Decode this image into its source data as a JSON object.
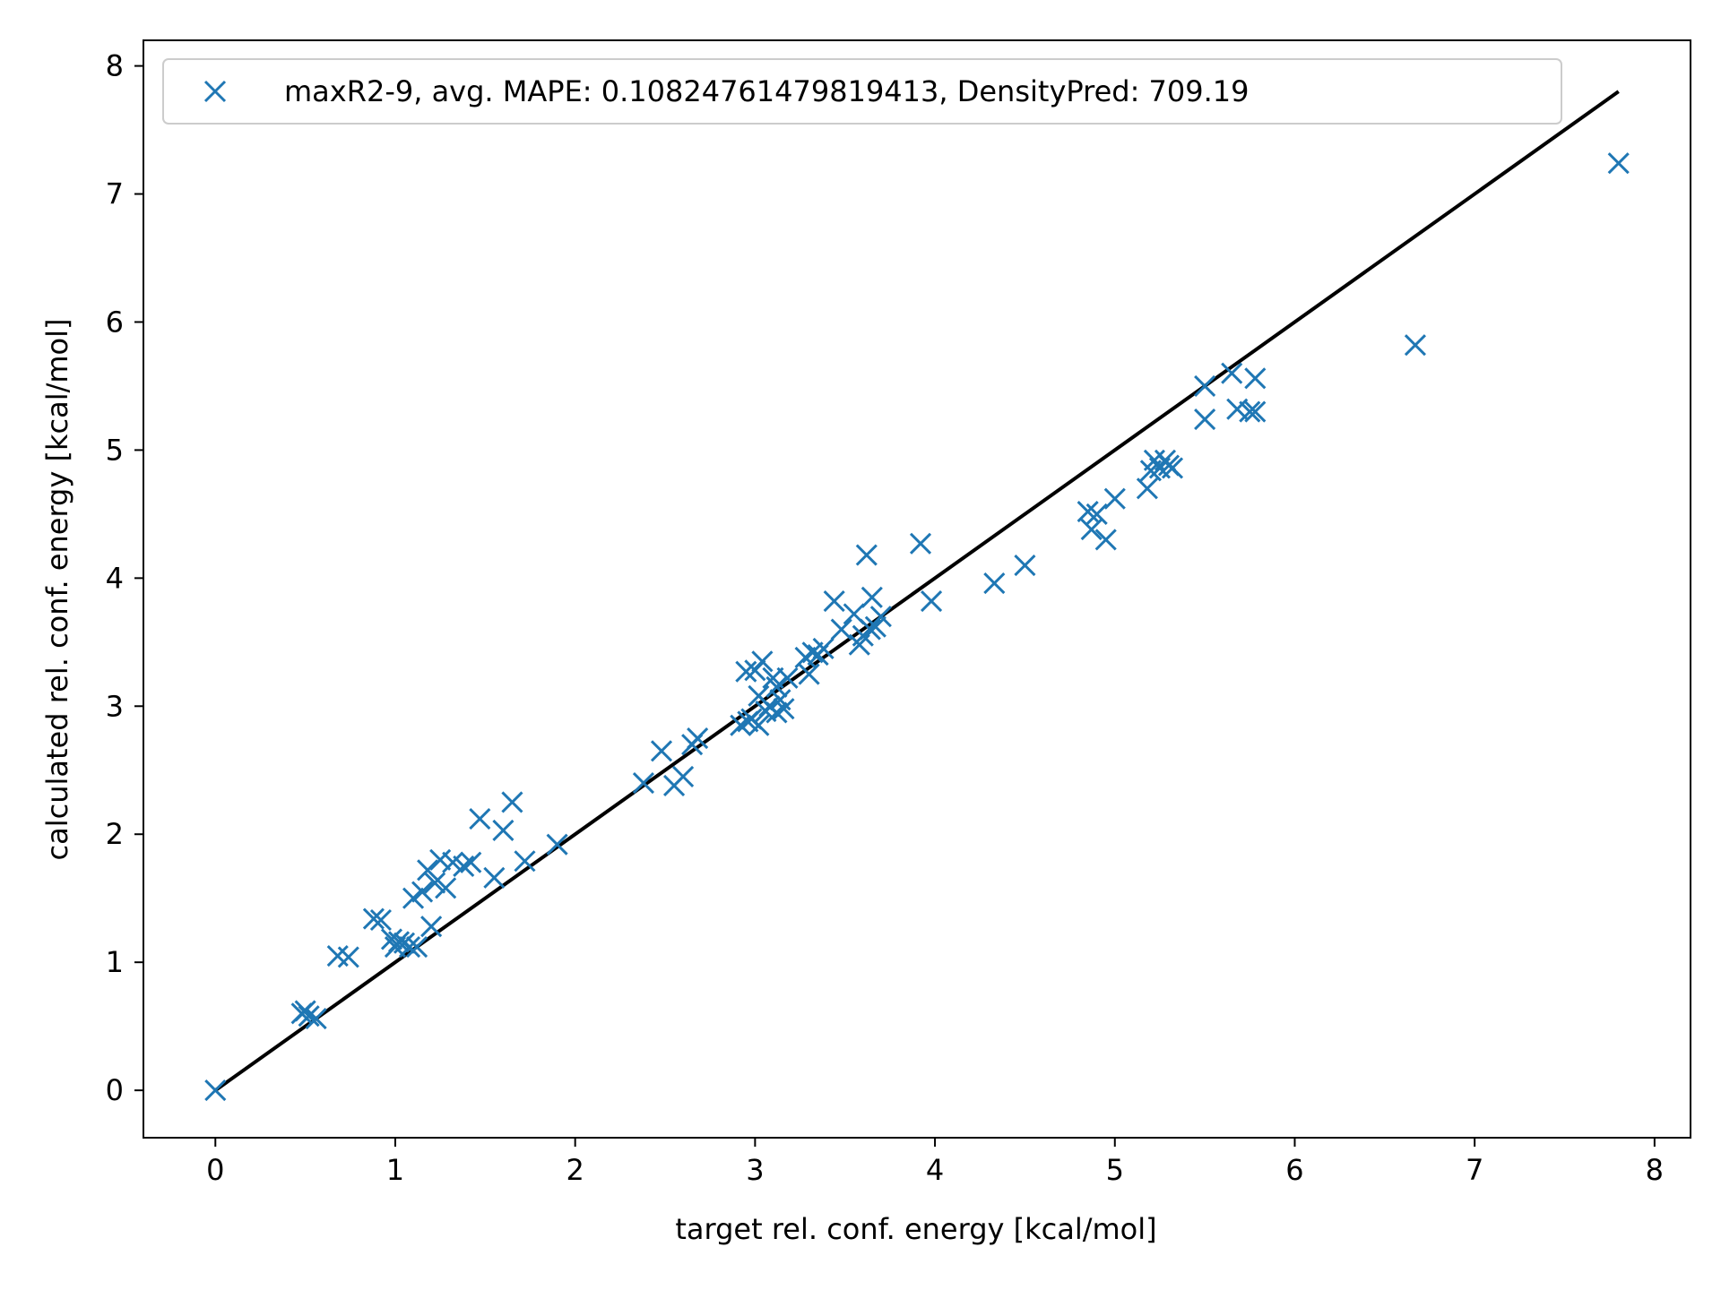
{
  "chart_data": {
    "type": "scatter",
    "title": "",
    "xlabel": "target rel. conf. energy [kcal/mol]",
    "ylabel": "calculated rel. conf. energy [kcal/mol]",
    "xlim": [
      -0.4,
      8.2
    ],
    "ylim": [
      -0.37,
      8.2
    ],
    "xticks": [
      0,
      1,
      2,
      3,
      4,
      5,
      6,
      7,
      8
    ],
    "yticks": [
      0,
      1,
      2,
      3,
      4,
      5,
      6,
      7,
      8
    ],
    "grid": false,
    "legend_position": "top-left",
    "colors": {
      "points": "#1f77b4",
      "line": "#000000"
    },
    "reference_line": {
      "x": [
        0,
        7.8
      ],
      "y": [
        0,
        7.8
      ]
    },
    "series": [
      {
        "name": "maxR2-9, avg. MAPE: 0.10824761479819413, DensityPred: 709.19",
        "marker": "x",
        "x": [
          0.0,
          0.48,
          0.5,
          0.52,
          0.56,
          0.68,
          0.74,
          0.88,
          0.92,
          0.98,
          1.0,
          1.02,
          1.05,
          1.08,
          1.1,
          1.12,
          1.15,
          1.18,
          1.2,
          1.22,
          1.25,
          1.28,
          1.32,
          1.38,
          1.42,
          1.47,
          1.55,
          1.6,
          1.65,
          1.72,
          1.9,
          2.38,
          2.48,
          2.55,
          2.6,
          2.65,
          2.68,
          2.92,
          2.95,
          2.96,
          2.98,
          3.0,
          3.02,
          3.02,
          3.04,
          3.06,
          3.08,
          3.1,
          3.12,
          3.12,
          3.14,
          3.16,
          3.18,
          3.28,
          3.3,
          3.32,
          3.35,
          3.38,
          3.44,
          3.48,
          3.55,
          3.58,
          3.6,
          3.62,
          3.64,
          3.65,
          3.67,
          3.7,
          3.92,
          3.98,
          4.33,
          4.5,
          4.85,
          4.87,
          4.9,
          4.95,
          5.0,
          5.18,
          5.2,
          5.22,
          5.25,
          5.28,
          5.3,
          5.32,
          5.5,
          5.5,
          5.65,
          5.68,
          5.75,
          5.78,
          5.78,
          6.67,
          7.8
        ],
        "y": [
          0.0,
          0.6,
          0.62,
          0.58,
          0.56,
          1.05,
          1.04,
          1.34,
          1.33,
          1.18,
          1.12,
          1.16,
          1.15,
          1.12,
          1.5,
          1.12,
          1.55,
          1.72,
          1.28,
          1.62,
          1.8,
          1.58,
          1.78,
          1.75,
          1.78,
          2.12,
          1.66,
          2.03,
          2.25,
          1.79,
          1.92,
          2.4,
          2.65,
          2.38,
          2.45,
          2.7,
          2.75,
          2.85,
          3.27,
          2.88,
          2.9,
          3.28,
          3.08,
          2.85,
          3.35,
          2.96,
          3.0,
          3.22,
          3.15,
          2.95,
          3.05,
          2.98,
          3.22,
          3.38,
          3.25,
          3.42,
          3.4,
          3.45,
          3.82,
          3.6,
          3.72,
          3.48,
          3.55,
          4.18,
          3.6,
          3.85,
          3.62,
          3.7,
          4.27,
          3.82,
          3.96,
          4.1,
          4.52,
          4.38,
          4.5,
          4.3,
          4.62,
          4.7,
          4.84,
          4.92,
          4.86,
          4.92,
          4.88,
          4.86,
          5.5,
          5.24,
          5.6,
          5.32,
          5.3,
          5.56,
          5.3,
          5.82,
          7.24
        ]
      }
    ]
  }
}
